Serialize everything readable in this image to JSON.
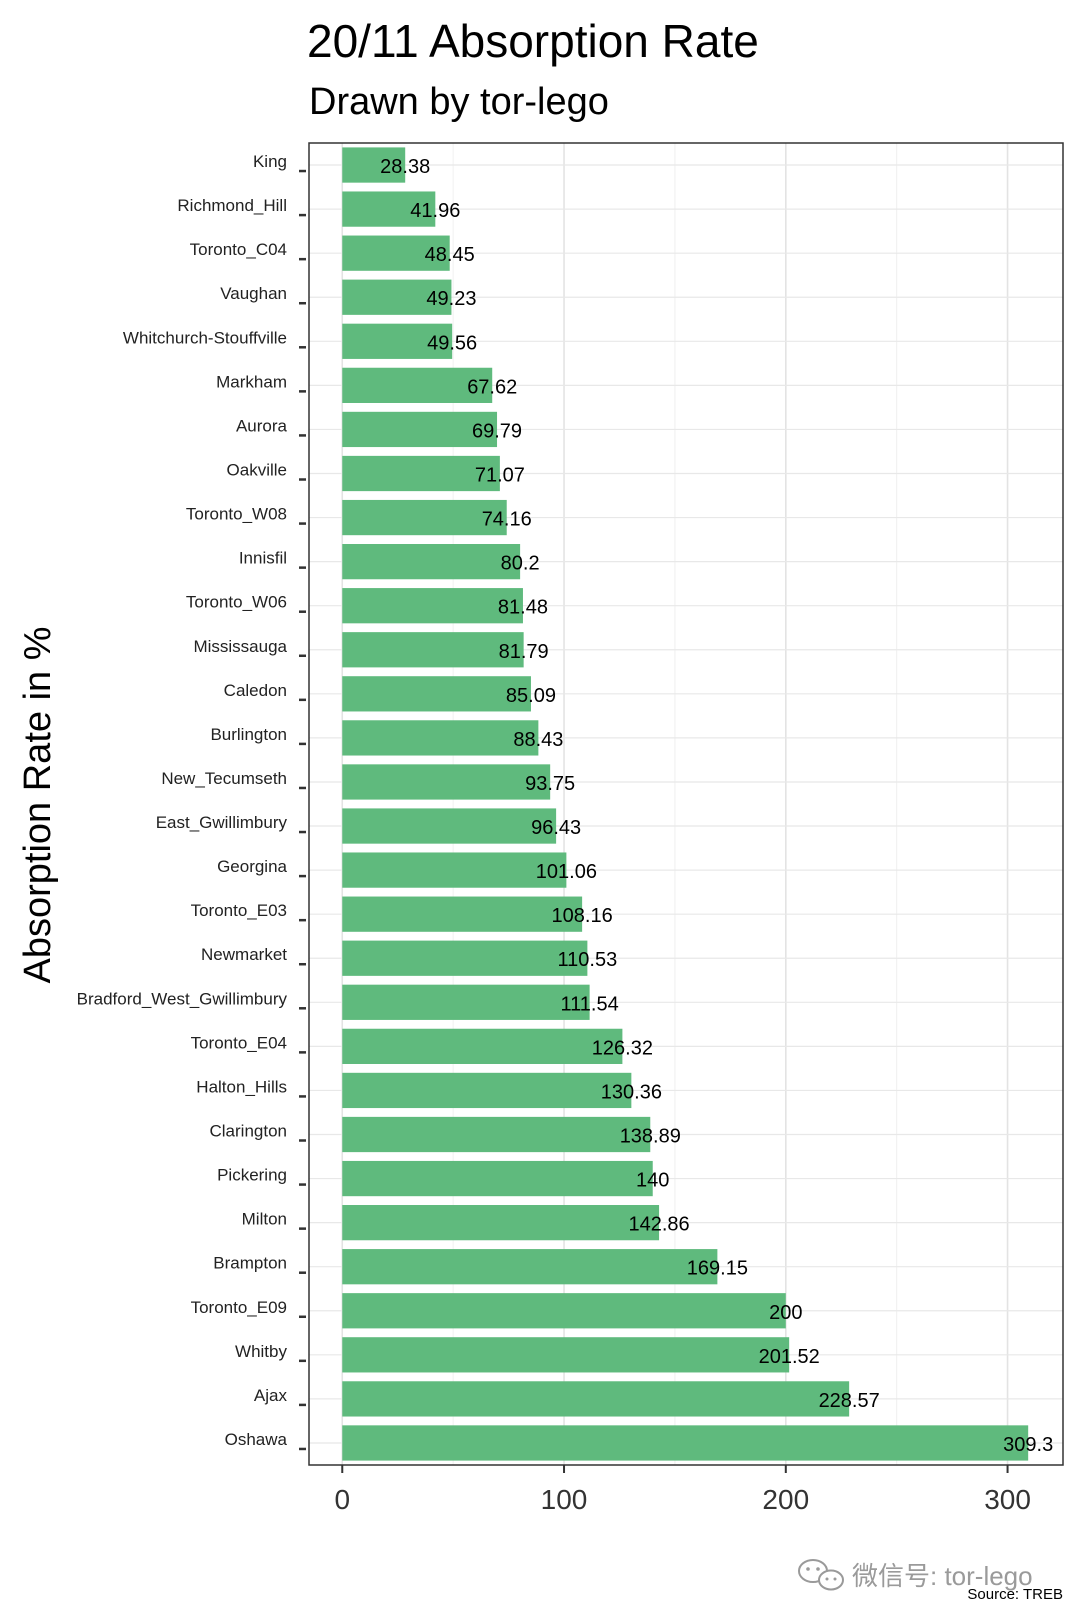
{
  "chart_data": {
    "type": "bar",
    "orientation": "horizontal",
    "title": "20/11 Absorption Rate",
    "subtitle": "Drawn by tor-lego",
    "xlabel": "",
    "ylabel": "Absorption Rate in %",
    "caption": "Source: TREB",
    "categories": [
      "King",
      "Richmond_Hill",
      "Toronto_C04",
      "Vaughan",
      "Whitchurch-Stouffville",
      "Markham",
      "Aurora",
      "Oakville",
      "Toronto_W08",
      "Innisfil",
      "Toronto_W06",
      "Mississauga",
      "Caledon",
      "Burlington",
      "New_Tecumseth",
      "East_Gwillimbury",
      "Georgina",
      "Toronto_E03",
      "Newmarket",
      "Bradford_West_Gwillimbury",
      "Toronto_E04",
      "Halton_Hills",
      "Clarington",
      "Pickering",
      "Milton",
      "Brampton",
      "Toronto_E09",
      "Whitby",
      "Ajax",
      "Oshawa"
    ],
    "values": [
      28.38,
      41.96,
      48.45,
      49.23,
      49.56,
      67.62,
      69.79,
      71.07,
      74.16,
      80.2,
      81.48,
      81.79,
      85.09,
      88.43,
      93.75,
      96.43,
      101.06,
      108.16,
      110.53,
      111.54,
      126.32,
      130.36,
      138.89,
      140,
      142.86,
      169.15,
      200,
      201.52,
      228.57,
      309.3
    ],
    "value_labels": [
      "28.38",
      "41.96",
      "48.45",
      "49.23",
      "49.56",
      "67.62",
      "69.79",
      "71.07",
      "74.16",
      "80.2",
      "81.48",
      "81.79",
      "85.09",
      "88.43",
      "93.75",
      "96.43",
      "101.06",
      "108.16",
      "110.53",
      "111.54",
      "126.32",
      "130.36",
      "138.89",
      "140",
      "142.86",
      "169.15",
      "200",
      "201.52",
      "228.57",
      "309.3"
    ],
    "xticks": [
      0,
      100,
      200,
      300
    ],
    "xlim": [
      -15,
      325
    ],
    "grid": true,
    "bar_color": "#5fba7d"
  },
  "watermark": "微信号: tor-lego"
}
